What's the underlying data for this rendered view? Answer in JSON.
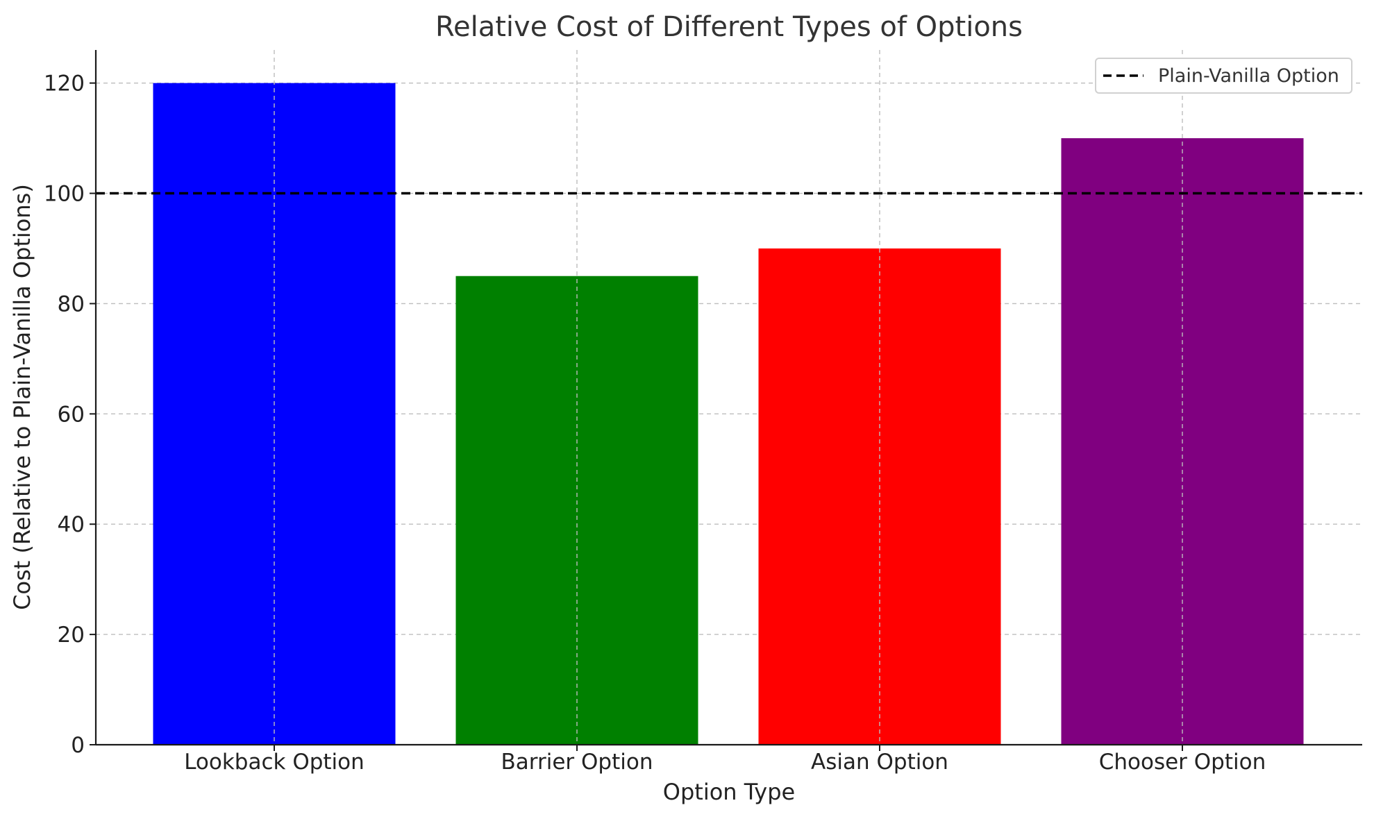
{
  "chart_data": {
    "type": "bar",
    "title": "Relative Cost of Different Types of Options",
    "xlabel": "Option Type",
    "ylabel": "Cost (Relative to Plain-Vanilla Options)",
    "categories": [
      "Lookback Option",
      "Barrier Option",
      "Asian Option",
      "Chooser Option"
    ],
    "values": [
      120,
      85,
      90,
      110
    ],
    "colors": [
      "#0000ff",
      "#008000",
      "#ff0000",
      "#800080"
    ],
    "ylim": [
      0,
      126
    ],
    "yticks": [
      0,
      20,
      40,
      60,
      80,
      100,
      120
    ],
    "grid": true,
    "reference_line": {
      "label": "Plain-Vanilla Option",
      "value": 100,
      "color": "#000000",
      "style": "dashed"
    },
    "legend": {
      "position": "top-right",
      "entries": [
        "Plain-Vanilla Option"
      ]
    }
  }
}
